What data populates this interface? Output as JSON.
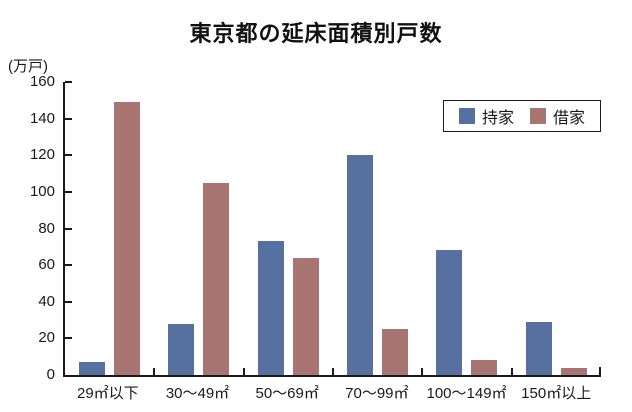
{
  "title": "東京都の延床面積別戸数",
  "y_axis": {
    "unit_label": "(万戸)",
    "ticks": [
      0,
      20,
      40,
      60,
      80,
      100,
      120,
      140,
      160
    ],
    "max": 160
  },
  "chart_data": {
    "type": "bar",
    "title": "東京都の延床面積別戸数",
    "categories": [
      "29㎡以下",
      "30〜49㎡",
      "50〜69㎡",
      "70〜99㎡",
      "100〜149㎡",
      "150㎡以上"
    ],
    "series": [
      {
        "key": "owned-home",
        "name": "持家",
        "color": "#56709F",
        "values": [
          7,
          28,
          73,
          120,
          68,
          29
        ]
      },
      {
        "key": "rented-home",
        "name": "借家",
        "color": "#A87572",
        "values": [
          149,
          105,
          64,
          25,
          8,
          4
        ]
      }
    ],
    "xlabel": "",
    "ylabel": "(万戸)",
    "ylim": [
      0,
      160
    ],
    "grid": false,
    "legend_position": "top-right-inside",
    "axis_color": "#1a1a1a",
    "background_color": "#ffffff"
  }
}
